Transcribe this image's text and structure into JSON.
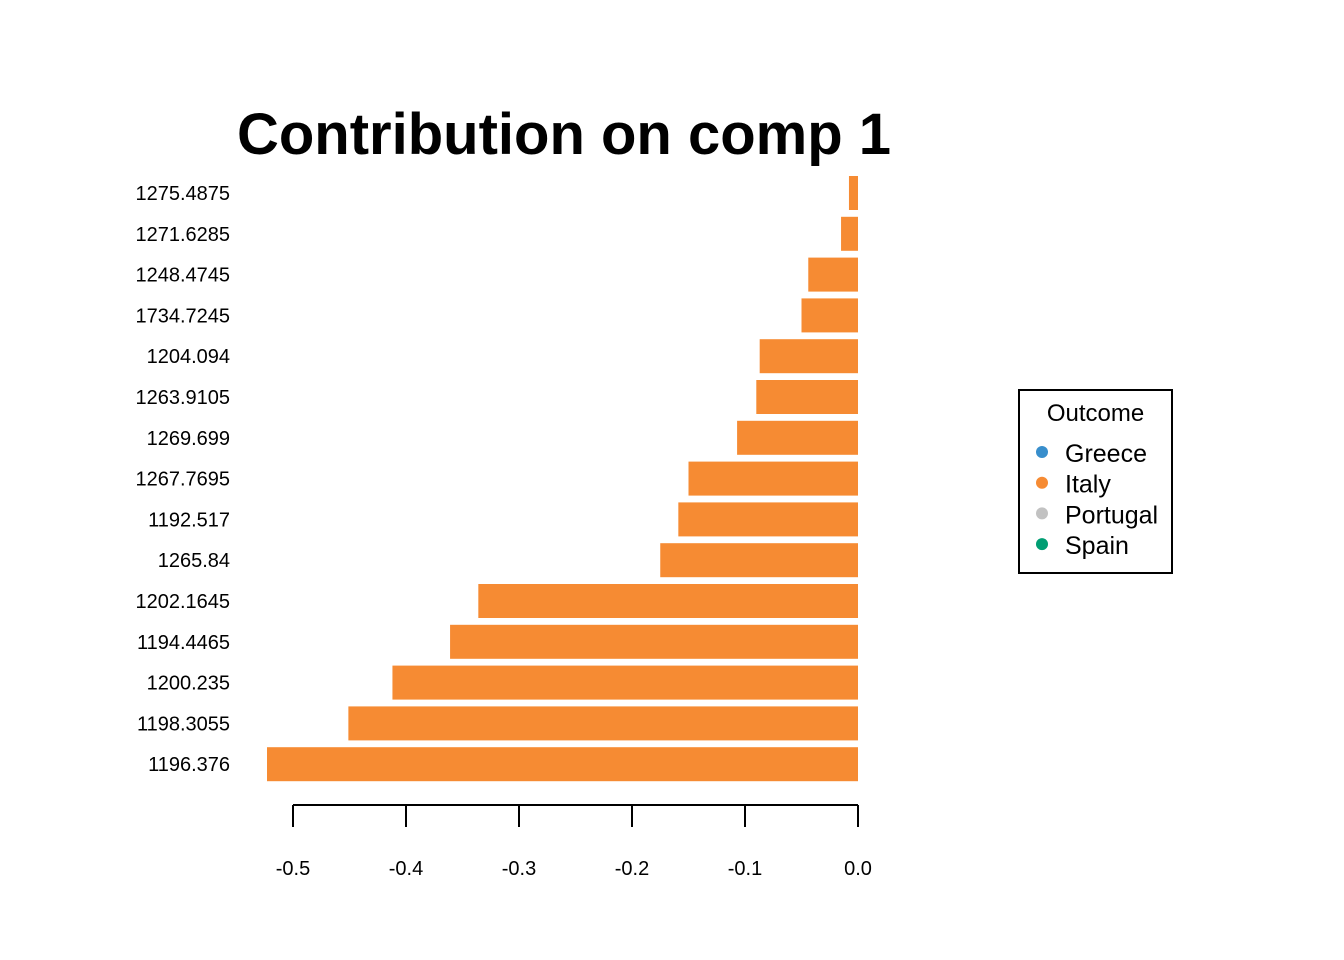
{
  "chart_data": {
    "type": "bar",
    "orientation": "horizontal",
    "title": "Contribution on comp 1",
    "xlabel": "",
    "ylabel": "",
    "categories": [
      "1275.4875",
      "1271.6285",
      "1248.4745",
      "1734.7245",
      "1204.094",
      "1263.9105",
      "1269.699",
      "1267.7695",
      "1192.517",
      "1265.84",
      "1202.1645",
      "1194.4465",
      "1200.235",
      "1198.3055",
      "1196.376"
    ],
    "values": [
      -0.008,
      -0.015,
      -0.044,
      -0.05,
      -0.087,
      -0.09,
      -0.107,
      -0.15,
      -0.159,
      -0.175,
      -0.336,
      -0.361,
      -0.412,
      -0.451,
      -0.523
    ],
    "bar_colors": [
      "#F68B33",
      "#F68B33",
      "#F68B33",
      "#F68B33",
      "#F68B33",
      "#F68B33",
      "#F68B33",
      "#F68B33",
      "#F68B33",
      "#F68B33",
      "#F68B33",
      "#F68B33",
      "#F68B33",
      "#F68B33",
      "#F68B33"
    ],
    "xlim": [
      -0.523,
      0.0
    ],
    "x_ticks": [
      -0.5,
      -0.4,
      -0.3,
      -0.2,
      -0.1,
      0.0
    ],
    "x_tick_labels": [
      "-0.5",
      "-0.4",
      "-0.3",
      "-0.2",
      "-0.1",
      "0.0"
    ],
    "grid": false,
    "legend": {
      "title": "Outcome",
      "placement": "right",
      "entries": [
        {
          "label": "Greece",
          "color": "#388ECC"
        },
        {
          "label": "Italy",
          "color": "#F68B33"
        },
        {
          "label": "Portugal",
          "color": "#C2C2C2"
        },
        {
          "label": "Spain",
          "color": "#009E73"
        }
      ]
    }
  }
}
